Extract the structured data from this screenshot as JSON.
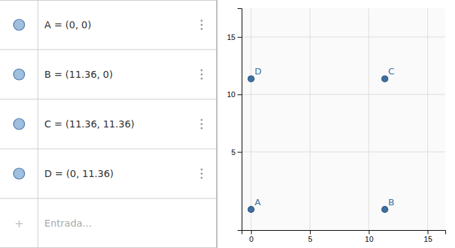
{
  "chart_data": {
    "type": "scatter",
    "x": [
      0,
      11.36,
      11.36,
      0
    ],
    "values": [
      0,
      0,
      11.36,
      11.36
    ],
    "point_labels": [
      "A",
      "B",
      "C",
      "D"
    ],
    "annotations": [
      "A = (0, 0)",
      "B = (11.36, 0)",
      "C = (11.36, 11.36)",
      "D = (0, 11.36)",
      "+",
      "Entrada..."
    ],
    "color": "#3d6fa0",
    "xlim": [
      -0.8,
      16.5
    ],
    "ylim": [
      -1.8,
      17.5
    ],
    "xticks": [
      0,
      5,
      10,
      15
    ],
    "yticks": [
      5,
      10,
      15
    ],
    "grid": true
  }
}
